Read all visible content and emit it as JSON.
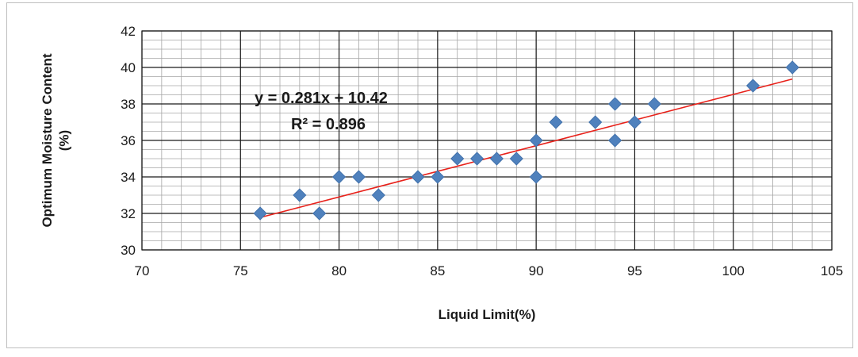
{
  "chart_data": {
    "type": "scatter",
    "xlabel": "Liquid Limit(%)",
    "ylabel": "Optimum Moisture Content (%)",
    "xlim": [
      70,
      105
    ],
    "ylim": [
      30,
      42
    ],
    "x_ticks": [
      70,
      75,
      80,
      85,
      90,
      95,
      100,
      105
    ],
    "y_ticks": [
      30,
      32,
      34,
      36,
      38,
      40,
      42
    ],
    "x_minor_step": 1,
    "y_minor_step": 0.5,
    "grid": true,
    "legend": "none",
    "marker": "diamond",
    "marker_color": "#4f81bd",
    "points": [
      {
        "x": 76,
        "y": 32
      },
      {
        "x": 78,
        "y": 33
      },
      {
        "x": 79,
        "y": 32
      },
      {
        "x": 80,
        "y": 34
      },
      {
        "x": 81,
        "y": 34
      },
      {
        "x": 82,
        "y": 33
      },
      {
        "x": 84,
        "y": 34
      },
      {
        "x": 85,
        "y": 34
      },
      {
        "x": 86,
        "y": 35
      },
      {
        "x": 87,
        "y": 35
      },
      {
        "x": 88,
        "y": 35
      },
      {
        "x": 89,
        "y": 35
      },
      {
        "x": 90,
        "y": 36
      },
      {
        "x": 90,
        "y": 34
      },
      {
        "x": 91,
        "y": 37
      },
      {
        "x": 93,
        "y": 37
      },
      {
        "x": 94,
        "y": 38
      },
      {
        "x": 94,
        "y": 36
      },
      {
        "x": 95,
        "y": 37
      },
      {
        "x": 96,
        "y": 38
      },
      {
        "x": 101,
        "y": 39
      },
      {
        "x": 103,
        "y": 40
      }
    ],
    "trendline": {
      "type": "linear",
      "slope": 0.281,
      "intercept": 10.42,
      "x_range": [
        76,
        103
      ],
      "color": "#e8221b",
      "equation_label": "y = 0.281x + 10.42",
      "r2_label": "R² = 0.896"
    }
  }
}
